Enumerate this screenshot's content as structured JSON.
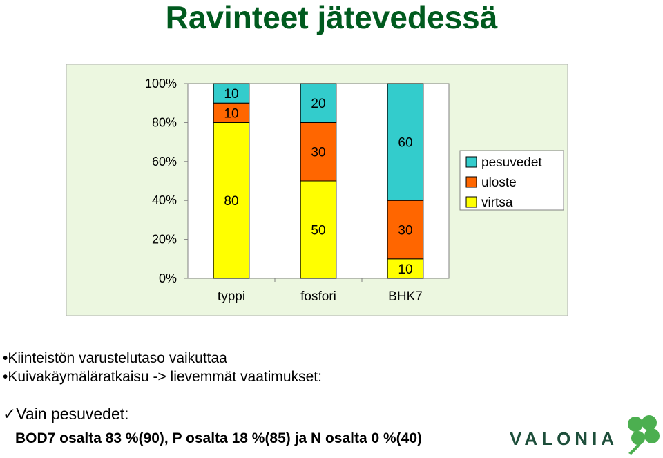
{
  "title": "Ravinteet jätevedessä",
  "chart_data": {
    "type": "bar",
    "stacked": "percent",
    "categories": [
      "typpi",
      "fosfori",
      "BHK7"
    ],
    "series": [
      {
        "name": "virtsa",
        "color": "#ffff00",
        "values": [
          80,
          50,
          10
        ]
      },
      {
        "name": "uloste",
        "color": "#ff6600",
        "values": [
          10,
          30,
          30
        ]
      },
      {
        "name": "pesuvedet",
        "color": "#33cccc",
        "values": [
          10,
          20,
          60
        ]
      }
    ],
    "yticks": [
      "0%",
      "20%",
      "40%",
      "60%",
      "80%",
      "100%"
    ],
    "ylim": [
      0,
      100
    ],
    "legend_position": "right",
    "plot_background": "#ecf7e0"
  },
  "bullets": [
    "•Kiinteistön varustelutaso vaikuttaa",
    "•Kuivakäymäläratkaisu -> lievemmät vaatimukset:"
  ],
  "check_text": "✓Vain pesuvedet:",
  "bottom_text": "BOD7 osalta 83 %(90), P osalta 18 %(85) ja N osalta 0 %(40)",
  "logo": {
    "text": "VALONIA",
    "color": "#1d4e3a",
    "leaf_color": "#4caf50"
  }
}
